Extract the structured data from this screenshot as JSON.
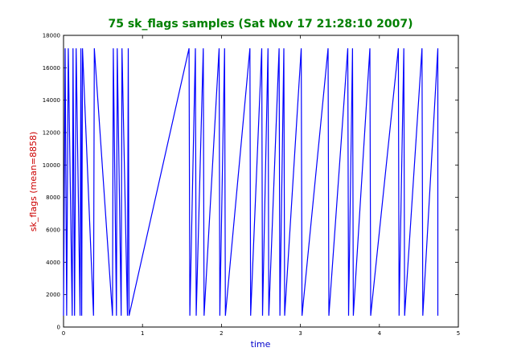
{
  "chart_data": {
    "type": "line",
    "title": "75 sk_flags samples (Sat Nov 17 21:28:10 2007)",
    "xlabel": "time",
    "ylabel": "sk_flags (mean=8858)",
    "xlim": [
      0,
      5
    ],
    "ylim": [
      0,
      18000
    ],
    "x_ticks": [
      "0",
      "1",
      "2",
      "3",
      "4",
      "5"
    ],
    "y_ticks": [
      "0",
      "2000",
      "4000",
      "6000",
      "8000",
      "10000",
      "12000",
      "14000",
      "16000",
      "18000"
    ],
    "grid": false,
    "series_color": "#0000ff",
    "title_color": "#008000",
    "xlabel_color": "#0000cc",
    "ylabel_color": "#cc0000",
    "series": [
      {
        "x": [
          0.0,
          0.02,
          0.04,
          0.06,
          0.11,
          0.12,
          0.14,
          0.16,
          0.21,
          0.22,
          0.23,
          0.24,
          0.38,
          0.39,
          0.62,
          0.63,
          0.67,
          0.68,
          0.73,
          0.74,
          0.81,
          0.82,
          0.83,
          1.59,
          1.6,
          1.67,
          1.68,
          1.77,
          1.78,
          1.97,
          1.98,
          2.04,
          2.05,
          2.36,
          2.37,
          2.51,
          2.52,
          2.59,
          2.6,
          2.73,
          2.74,
          2.79,
          2.8,
          3.01,
          3.02,
          3.35,
          3.36,
          3.6,
          3.61,
          3.66,
          3.67,
          3.88,
          3.89,
          4.24,
          4.25,
          4.31,
          4.32,
          4.54,
          4.55,
          4.74,
          4.74
        ],
        "y": [
          700,
          17200,
          700,
          17200,
          700,
          17200,
          700,
          17200,
          700,
          17200,
          700,
          17200,
          700,
          17200,
          700,
          17200,
          700,
          17200,
          700,
          17200,
          700,
          17200,
          700,
          17200,
          700,
          17200,
          700,
          17200,
          700,
          17200,
          700,
          17200,
          700,
          17200,
          700,
          17200,
          700,
          17200,
          700,
          17200,
          700,
          17200,
          700,
          17200,
          700,
          17200,
          700,
          17200,
          700,
          17200,
          700,
          17200,
          700,
          17200,
          700,
          17200,
          700,
          17200,
          700,
          17200,
          700
        ]
      }
    ]
  }
}
